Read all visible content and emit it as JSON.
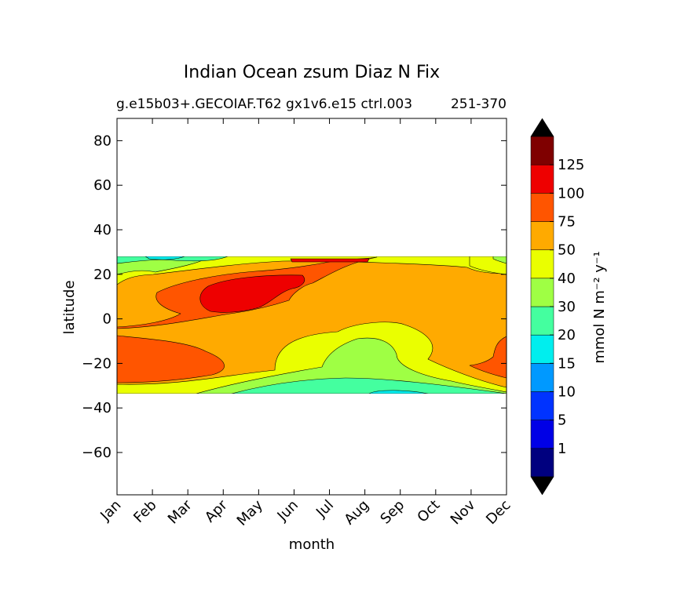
{
  "figure": {
    "title": "Indian Ocean zsum Diaz N Fix",
    "subtitle": "g.e15b03+.GECOIAF.T62 gx1v6.e15 ctrl.003",
    "subtitle_right": "251-370"
  },
  "chart_data": {
    "type": "heatmap",
    "title": "Indian Ocean zsum Diaz N Fix",
    "subtitle": "g.e15b03+.GECOIAF.T62 gx1v6.e15 ctrl.003251-370",
    "xlabel": "month",
    "ylabel": "latitude",
    "x_categories": [
      "Jan",
      "Feb",
      "Mar",
      "Apr",
      "May",
      "Jun",
      "Jul",
      "Aug",
      "Sep",
      "Oct",
      "Nov",
      "Dec"
    ],
    "xlim": [
      0,
      11
    ],
    "ylim": [
      -79,
      90
    ],
    "y_ticks": [
      80,
      60,
      40,
      20,
      0,
      -20,
      -40,
      -60
    ],
    "data_lat_range": [
      -33,
      27
    ],
    "colorbar": {
      "label": "mmol N m⁻² y⁻¹",
      "levels": [
        1,
        5,
        10,
        15,
        20,
        30,
        40,
        50,
        75,
        100,
        125
      ],
      "tick_labels": [
        "1",
        "5",
        "10",
        "15",
        "20",
        "30",
        "40",
        "50",
        "75",
        "100",
        "125"
      ],
      "extend": "both",
      "colors": [
        "#00007f",
        "#0000e6",
        "#0033ff",
        "#0099ff",
        "#00eeee",
        "#44ff9f",
        "#9fff44",
        "#eaff00",
        "#ffaa00",
        "#ff5500",
        "#ee0000",
        "#7f0000"
      ],
      "under_color": "#000000",
      "over_color": "#000000"
    },
    "contour_regions": [
      {
        "level_band": "40-50",
        "color": "#eaff00",
        "description": "upper band near 25N"
      },
      {
        "level_band": "50-75",
        "color": "#ffaa00",
        "description": "background"
      },
      {
        "level_band": "75-100",
        "color": "#ff5500",
        "description": "Feb-Jul 0-25N and Jan-Mar -30 to -8"
      },
      {
        "level_band": "100-125",
        "color": "#ee0000",
        "description": "Apr-Jun ~3-20N maximum"
      }
    ]
  }
}
